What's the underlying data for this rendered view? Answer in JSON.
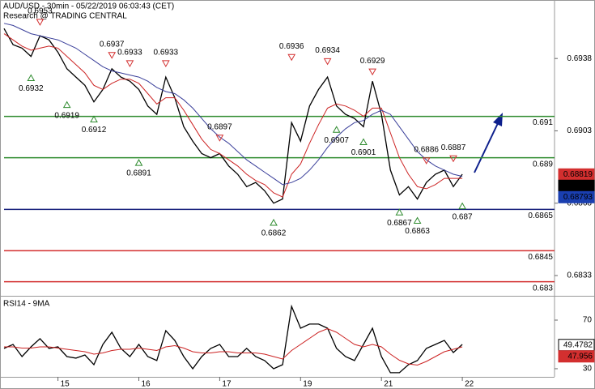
{
  "header": {
    "title": "AUD/USD - 30min - 05/22/2019 06:03:43 (CET)",
    "source": "Research @ TRADING CENTRAL"
  },
  "chart_data": [
    {
      "type": "line",
      "ylim": [
        0.68232,
        0.69663
      ],
      "yticks": [
        0.6833,
        0.6868,
        0.6903,
        0.6938
      ],
      "series": [
        {
          "color": "#000000",
          "values": [
            0.69525,
            0.69447,
            0.6943,
            0.6939,
            0.6949,
            0.6947,
            0.6941,
            0.6933,
            0.6929,
            0.6925,
            0.6917,
            0.6923,
            0.6933,
            0.6929,
            0.6927,
            0.6923,
            0.6915,
            0.6911,
            0.6929,
            0.6919,
            0.6905,
            0.6898,
            0.6892,
            0.689,
            0.6892,
            0.6886,
            0.6882,
            0.6876,
            0.6878,
            0.6874,
            0.6868,
            0.687,
            0.6907,
            0.6898,
            0.6915,
            0.6923,
            0.6929,
            0.6915,
            0.6911,
            0.6909,
            0.6905,
            0.6927,
            0.6911,
            0.6884,
            0.6872,
            0.6876,
            0.687,
            0.6878,
            0.6882,
            0.6884,
            0.6876,
            0.6882
          ]
        },
        {
          "color": "#cc2222",
          "values": [
            0.695,
            0.6947,
            0.6944,
            0.6942,
            0.6943,
            0.6944,
            0.6943,
            0.6939,
            0.6935,
            0.6931,
            0.6925,
            0.6923,
            0.6926,
            0.6928,
            0.6928,
            0.6926,
            0.6921,
            0.6916,
            0.6919,
            0.6919,
            0.6913,
            0.6906,
            0.6899,
            0.6894,
            0.6892,
            0.6889,
            0.6886,
            0.6882,
            0.6879,
            0.6877,
            0.6873,
            0.6871,
            0.6882,
            0.6887,
            0.6897,
            0.6906,
            0.6914,
            0.6916,
            0.6915,
            0.6913,
            0.691,
            0.6914,
            0.6914,
            0.6902,
            0.689,
            0.6882,
            0.6876,
            0.6875,
            0.6877,
            0.688,
            0.688,
            0.688
          ]
        },
        {
          "color": "#3a3f9a",
          "values": [
            0.6955,
            0.6954,
            0.6952,
            0.695,
            0.6949,
            0.6948,
            0.6947,
            0.6945,
            0.6943,
            0.694,
            0.6937,
            0.6934,
            0.6932,
            0.6931,
            0.693,
            0.6929,
            0.6927,
            0.6924,
            0.6922,
            0.6921,
            0.6918,
            0.6914,
            0.6909,
            0.6904,
            0.69,
            0.6897,
            0.6893,
            0.6889,
            0.6886,
            0.6883,
            0.688,
            0.6877,
            0.6878,
            0.688,
            0.6884,
            0.6889,
            0.6895,
            0.69,
            0.6904,
            0.6907,
            0.6908,
            0.6911,
            0.6913,
            0.6911,
            0.6905,
            0.6899,
            0.6893,
            0.6889,
            0.6886,
            0.6884,
            0.6882,
            0.6881
          ]
        }
      ],
      "levels": [
        {
          "value": 0.691,
          "color": "#2e8b2e"
        },
        {
          "value": 0.689,
          "color": "#2e8b2e"
        },
        {
          "value": 0.6865,
          "color": "#1a237e"
        },
        {
          "value": 0.6845,
          "color": "#d32f2f"
        },
        {
          "value": 0.683,
          "color": "#d32f2f"
        }
      ],
      "annotations": [
        {
          "value": 0.6953,
          "index": 4,
          "dir": "high"
        },
        {
          "value": 0.6937,
          "index": 12,
          "dir": "high"
        },
        {
          "value": 0.6933,
          "index": 14,
          "dir": "high"
        },
        {
          "value": 0.6933,
          "index": 18,
          "dir": "high"
        },
        {
          "value": 0.6897,
          "index": 24,
          "dir": "high"
        },
        {
          "value": 0.6936,
          "index": 32,
          "dir": "high"
        },
        {
          "value": 0.6934,
          "index": 36,
          "dir": "high"
        },
        {
          "value": 0.6929,
          "index": 41,
          "dir": "high"
        },
        {
          "value": 0.6886,
          "index": 47,
          "dir": "high"
        },
        {
          "value": 0.6887,
          "index": 50,
          "dir": "high"
        },
        {
          "value": 0.6932,
          "index": 3,
          "dir": "low"
        },
        {
          "value": 0.6919,
          "index": 7,
          "dir": "low"
        },
        {
          "value": 0.6912,
          "index": 10,
          "dir": "low"
        },
        {
          "value": 0.6891,
          "index": 15,
          "dir": "low"
        },
        {
          "value": 0.6862,
          "index": 30,
          "dir": "low"
        },
        {
          "value": 0.6907,
          "index": 37,
          "dir": "low"
        },
        {
          "value": 0.6901,
          "index": 40,
          "dir": "low"
        },
        {
          "value": 0.6867,
          "index": 44,
          "dir": "low"
        },
        {
          "value": 0.6863,
          "index": 46,
          "dir": "low"
        },
        {
          "value": 0.687,
          "index": 51,
          "dir": "low"
        }
      ],
      "price_labels": [
        {
          "value": 0.68819,
          "color": "#d32f2f"
        },
        {
          "value": 0.68811,
          "color": "#000000"
        },
        {
          "value": 0.68793,
          "color": "#1a3fb0"
        }
      ]
    },
    {
      "type": "line",
      "title": "RSI14 - 9MA",
      "categories": [
        null,
        null,
        null,
        null,
        null,
        null,
        "15",
        null,
        null,
        null,
        null,
        null,
        null,
        null,
        null,
        "16",
        null,
        null,
        null,
        null,
        null,
        null,
        null,
        null,
        "17",
        null,
        null,
        null,
        null,
        null,
        null,
        null,
        null,
        "19",
        null,
        null,
        null,
        null,
        null,
        null,
        null,
        null,
        "21",
        null,
        null,
        null,
        null,
        null,
        null,
        null,
        null,
        "22"
      ],
      "ylim": [
        23.3,
        88
      ],
      "yticks": [
        30,
        70
      ],
      "series": [
        {
          "color": "#000000",
          "values": [
            46.7,
            50,
            40,
            48,
            54.7,
            46.7,
            48,
            40,
            38.7,
            41.3,
            33.3,
            50,
            60,
            46.7,
            40,
            50,
            40,
            36.7,
            61.3,
            53.3,
            40,
            30,
            40,
            46.7,
            50,
            40,
            40,
            46.7,
            40,
            36.7,
            30,
            33.3,
            81.3,
            63.3,
            66.7,
            66.7,
            63.3,
            46.7,
            40,
            36.7,
            50,
            63.3,
            40,
            26.7,
            26.7,
            33.3,
            36.7,
            46.7,
            50,
            53.3,
            43.3,
            50
          ]
        },
        {
          "color": "#cc2222",
          "values": [
            48,
            48,
            47,
            47,
            48,
            48,
            47,
            46,
            45,
            44,
            42,
            43,
            45,
            46,
            46,
            47,
            46,
            45,
            48,
            49,
            47,
            44,
            43,
            43,
            44,
            44,
            43,
            43,
            43,
            42,
            40,
            38,
            45,
            50,
            55,
            60,
            63,
            60,
            55,
            50,
            48,
            50,
            48,
            42,
            37,
            34,
            33,
            36,
            40,
            44,
            46,
            48
          ]
        }
      ],
      "price_labels": [
        {
          "value": 49.4782,
          "color": "#ffffff"
        },
        {
          "value": 47.956,
          "color": "#d32f2f"
        }
      ]
    }
  ]
}
